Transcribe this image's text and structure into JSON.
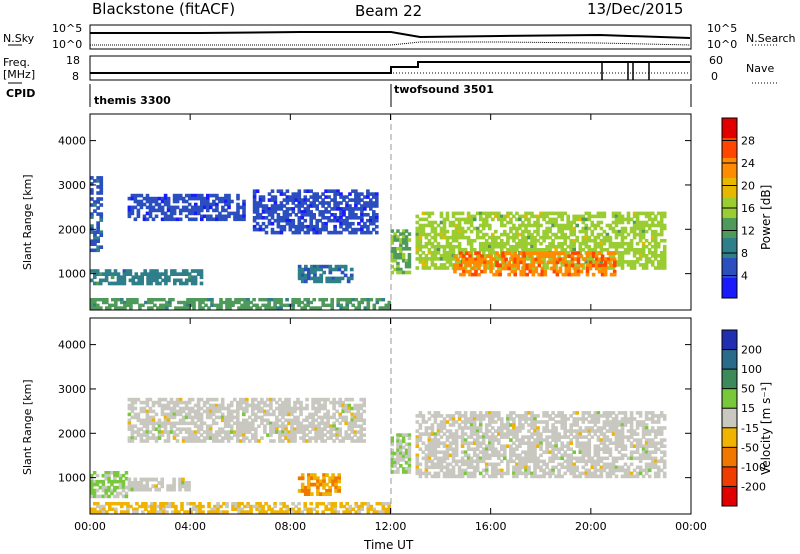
{
  "header": {
    "radar": "Blackstone (fitACF)",
    "beam": "Beam 22",
    "date": "13/Dec/2015"
  },
  "summary_panel": {
    "left_labels": [
      "N.Sky",
      "Freq.",
      "[MHz]",
      "CPID"
    ],
    "nsky_ticks": [
      "10^5",
      "10^0"
    ],
    "freq_ticks": [
      "18",
      "8"
    ],
    "right_labels": [
      "N.Search",
      "Nave"
    ],
    "nsearch_ticks": [
      "10^5",
      "10^0"
    ],
    "nave_ticks": [
      "60",
      "0"
    ],
    "cpid_segments": [
      {
        "name": "themis 3300",
        "start_hour": 0
      },
      {
        "name": "twofsound 3501",
        "start_hour": 12
      }
    ]
  },
  "axes": {
    "xlabel": "Time UT",
    "x_ticks": [
      "00:00",
      "04:00",
      "08:00",
      "12:00",
      "16:00",
      "20:00",
      "00:00"
    ],
    "ylabel": "Slant Range [km]",
    "y_ticks": [
      "1000",
      "2000",
      "3000",
      "4000"
    ]
  },
  "power_colorbar": {
    "label": "Power [dB]",
    "ticks": [
      "4",
      "8",
      "12",
      "16",
      "20",
      "24",
      "28"
    ],
    "colors": [
      "#1a1aff",
      "#2b4fbf",
      "#2f7f8a",
      "#4f9a5a",
      "#9acd32",
      "#e6b800",
      "#ff8c00",
      "#ff4500",
      "#e00000"
    ]
  },
  "velocity_colorbar": {
    "label": "Velocity [m s⁻¹]",
    "ticks": [
      "200",
      "100",
      "50",
      "15",
      "-15",
      "-50",
      "-100",
      "-200"
    ],
    "colors": [
      "#1f2fb0",
      "#2a6a8a",
      "#3c8a5a",
      "#78c83c",
      "#c8c8c0",
      "#f0b400",
      "#f07800",
      "#f03c00",
      "#e00000"
    ]
  },
  "chart_data": [
    {
      "type": "heatmap",
      "name": "power",
      "xlabel": "Time UT",
      "ylabel": "Slant Range [km]",
      "xlim_hours": [
        0,
        24
      ],
      "ylim_km": [
        180,
        4600
      ],
      "colorbar_label": "Power [dB]",
      "cmin": 0,
      "cmax": 32,
      "regions": [
        {
          "t0": 0.0,
          "t1": 4.5,
          "r0": 750,
          "r1": 1100,
          "value": 9
        },
        {
          "t0": 0.0,
          "t1": 0.5,
          "r0": 1500,
          "r1": 3200,
          "value": 6
        },
        {
          "t0": 1.5,
          "t1": 6.2,
          "r0": 2200,
          "r1": 2800,
          "value": 5
        },
        {
          "t0": 6.5,
          "t1": 11.5,
          "r0": 1900,
          "r1": 2900,
          "value": 5
        },
        {
          "t0": 8.3,
          "t1": 10.5,
          "r0": 800,
          "r1": 1200,
          "value": 8
        },
        {
          "t0": 0.0,
          "t1": 12.0,
          "r0": 200,
          "r1": 450,
          "value": 12
        },
        {
          "t0": 12.0,
          "t1": 12.8,
          "r0": 1000,
          "r1": 2000,
          "value": 14
        },
        {
          "t0": 13.0,
          "t1": 23.0,
          "r0": 1100,
          "r1": 2400,
          "value": 16
        },
        {
          "t0": 14.5,
          "t1": 21.0,
          "r0": 950,
          "r1": 1500,
          "value": 24
        }
      ]
    },
    {
      "type": "heatmap",
      "name": "velocity",
      "xlabel": "Time UT",
      "ylabel": "Slant Range [km]",
      "xlim_hours": [
        0,
        24
      ],
      "ylim_km": [
        180,
        4600
      ],
      "colorbar_label": "Velocity [m s⁻¹]",
      "cmin": -250,
      "cmax": 250,
      "regions": [
        {
          "t0": 0.0,
          "t1": 1.5,
          "r0": 550,
          "r1": 1150,
          "value": 30
        },
        {
          "t0": 1.5,
          "t1": 4.0,
          "r0": 700,
          "r1": 1000,
          "value": 0
        },
        {
          "t0": 8.3,
          "t1": 10.0,
          "r0": 600,
          "r1": 1100,
          "value": -80
        },
        {
          "t0": 0.0,
          "t1": 12.0,
          "r0": 200,
          "r1": 450,
          "value": -40
        },
        {
          "t0": 1.5,
          "t1": 11.0,
          "r0": 1800,
          "r1": 2800,
          "value": 0
        },
        {
          "t0": 12.0,
          "t1": 12.8,
          "r0": 1100,
          "r1": 2000,
          "value": 30
        },
        {
          "t0": 13.0,
          "t1": 23.0,
          "r0": 1000,
          "r1": 2500,
          "value": 0
        }
      ]
    }
  ]
}
